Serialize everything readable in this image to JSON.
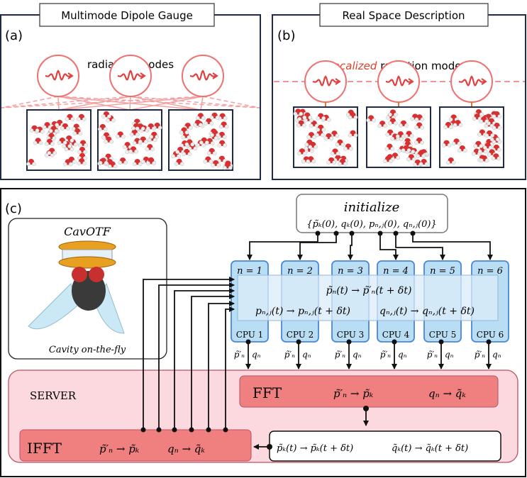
{
  "panel_a": {
    "label": "(a)",
    "title": "Multimode Dipole Gauge",
    "caption": "radiation modes"
  },
  "panel_b": {
    "label": "(b)",
    "title": "Real Space Description",
    "caption_highlight": "localized",
    "caption_rest": " radiation modes"
  },
  "panel_c": {
    "label": "(c)",
    "logo": {
      "name": "CavOTF",
      "subtitle": "Cavity on-the-fly"
    },
    "initialize": {
      "title": "initialize",
      "values": "{p̃ₖ(0), qₖ(0), pₙ,ⱼ(0), qₙ,ⱼ(0)}"
    },
    "cpus": [
      {
        "n": "n = 1",
        "cpu": "CPU 1"
      },
      {
        "n": "n = 2",
        "cpu": "CPU 2"
      },
      {
        "n": "n = 3",
        "cpu": "CPU 3"
      },
      {
        "n": "n = 4",
        "cpu": "CPU 4"
      },
      {
        "n": "n = 5",
        "cpu": "CPU 5"
      },
      {
        "n": "n = 6",
        "cpu": "CPU 6"
      }
    ],
    "band": {
      "line1": "p̃ₙ(t) → p̃′ₙ(t + δt)",
      "line2a": "pₙ,ⱼ(t) → pₙ,ⱼ(t + δt)",
      "line2b": "qₙ,ⱼ(t) → qₙ,ⱼ(t + δt)"
    },
    "outputs": {
      "p": "p̃′ₙ",
      "q": "qₙ"
    },
    "server": {
      "label": "SERVER",
      "fft": {
        "label": "FFT",
        "eq1": "p̃′ₙ → p̃ₖ",
        "eq2": "qₙ → q̃ₖ"
      },
      "ifft": {
        "label": "IFFT",
        "eq1": "p̃′ₙ → p̃ₖ",
        "eq2": "qₙ → q̃ₖ"
      },
      "update": {
        "eq1": "p̃ₖ(t) → p̃ₖ(t + δt)",
        "eq2": "q̃ₖ(t) → q̃ₖ(t + δt)"
      }
    }
  },
  "colors": {
    "navy": "#1f2a44",
    "mode_red": "#f07070",
    "highlight_red": "#e0402a",
    "cpu_blue": "#b9def4",
    "cpu_border": "#4a86d8",
    "server_pink": "#fcd9df",
    "fft_red": "#f08080"
  }
}
